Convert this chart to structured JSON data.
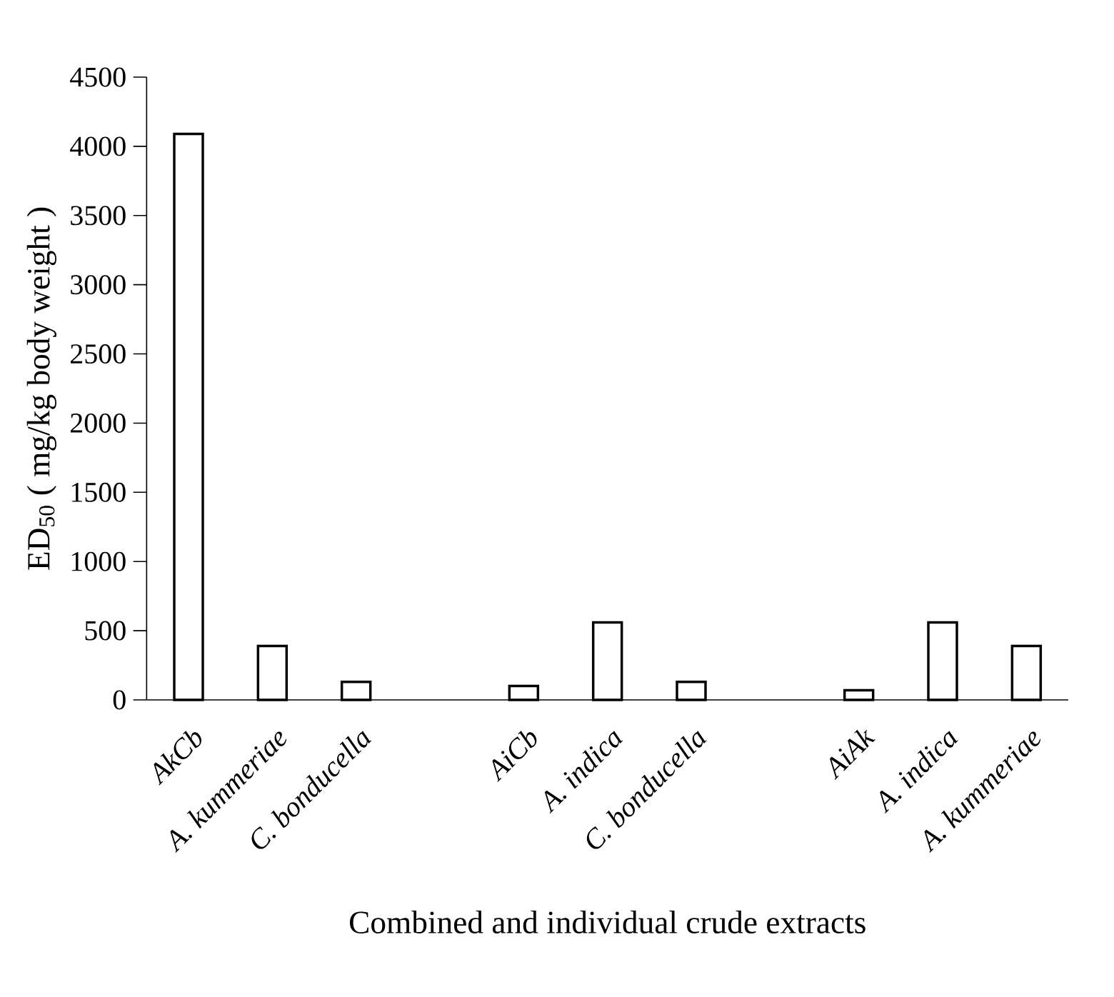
{
  "chart_data": {
    "type": "bar",
    "xlabel": "Combined and individual crude extracts",
    "ylabel": "ED$_{50}$ ( mg/kg body weight )",
    "categories": [
      "AkCb",
      "A. kummeriae",
      "C. bonducella",
      null,
      "AiCb",
      "A. indica",
      "C. bonducella",
      null,
      "AiAk",
      "A. indica",
      "A. kummeriae"
    ],
    "values": [
      4090,
      390,
      130,
      null,
      100,
      560,
      130,
      null,
      70,
      560,
      390
    ],
    "color": "#000000",
    "ylim": [
      0,
      4500
    ],
    "yticks": [
      0,
      500,
      1000,
      1500,
      2000,
      2500,
      3000,
      3500,
      4000,
      4500
    ]
  }
}
